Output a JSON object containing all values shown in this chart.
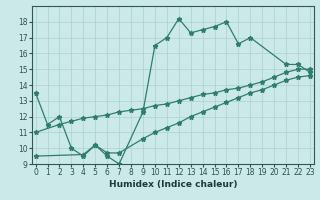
{
  "xlabel": "Humidex (Indice chaleur)",
  "background_color": "#cce9e9",
  "grid_color": "#aad0d0",
  "line_color": "#2e7d6e",
  "line1_x": [
    0,
    1,
    2,
    3,
    4,
    5,
    6,
    7,
    9,
    10,
    11,
    12,
    13,
    14,
    15,
    16,
    17,
    18,
    21,
    22,
    23
  ],
  "line1_y": [
    13.5,
    11.5,
    12.0,
    10.0,
    9.5,
    10.2,
    9.5,
    9.0,
    12.3,
    16.5,
    17.0,
    18.2,
    17.3,
    17.5,
    17.7,
    18.0,
    16.6,
    17.0,
    15.3,
    15.3,
    14.8
  ],
  "line2_x": [
    0,
    4,
    5,
    6,
    7,
    9,
    10,
    11,
    12,
    13,
    14,
    15,
    16,
    17,
    18,
    19,
    20,
    21,
    22,
    23
  ],
  "line2_y": [
    9.5,
    9.6,
    10.2,
    9.7,
    9.7,
    10.6,
    11.0,
    11.3,
    11.6,
    12.0,
    12.3,
    12.6,
    12.9,
    13.2,
    13.5,
    13.7,
    14.0,
    14.3,
    14.5,
    14.6
  ],
  "line3_x": [
    0,
    2,
    3,
    4,
    5,
    6,
    7,
    8,
    9,
    10,
    11,
    12,
    13,
    14,
    15,
    16,
    17,
    18,
    19,
    20,
    21,
    22,
    23
  ],
  "line3_y": [
    11.0,
    11.5,
    11.7,
    11.9,
    12.0,
    12.1,
    12.3,
    12.4,
    12.5,
    12.7,
    12.8,
    13.0,
    13.2,
    13.4,
    13.5,
    13.7,
    13.8,
    14.0,
    14.2,
    14.5,
    14.8,
    15.0,
    15.0
  ],
  "ylim": [
    9,
    19
  ],
  "xlim": [
    -0.3,
    23.3
  ],
  "yticks": [
    9,
    10,
    11,
    12,
    13,
    14,
    15,
    16,
    17,
    18
  ],
  "xticks": [
    0,
    1,
    2,
    3,
    4,
    5,
    6,
    7,
    8,
    9,
    10,
    11,
    12,
    13,
    14,
    15,
    16,
    17,
    18,
    19,
    20,
    21,
    22,
    23
  ],
  "tick_fontsize": 5.5,
  "xlabel_fontsize": 6.5
}
